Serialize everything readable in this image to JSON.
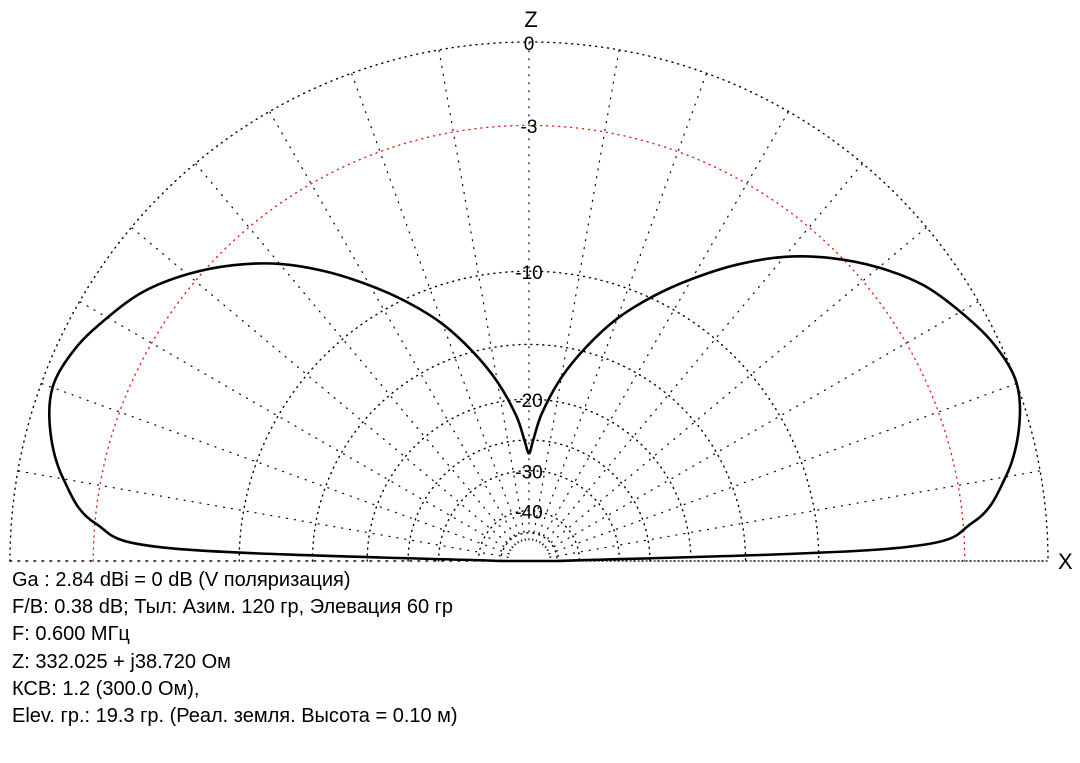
{
  "chart_data": {
    "type": "polar",
    "subtype": "elevation-pattern",
    "axis_labels": {
      "vertical": "Z",
      "horizontal": "X"
    },
    "ring_labels": [
      "0",
      "-3",
      "-10",
      "-20",
      "-30",
      "-40"
    ],
    "ring_values_db": [
      0,
      -3,
      -10,
      -20,
      -30,
      -40
    ],
    "highlight_ring_db": -3,
    "radial_spokes_step_deg": 10,
    "grid": "dotted",
    "colors": {
      "grid": "#000000",
      "highlight_ring": "#e8201a",
      "pattern": "#000000"
    },
    "pattern_db": {
      "elevation_deg": [
        0,
        2,
        5,
        10,
        15,
        20,
        25,
        30,
        35,
        40,
        45,
        50,
        55,
        60,
        65,
        70,
        75,
        80,
        85,
        88,
        90
      ],
      "right_db": [
        -50,
        -6.0,
        -2.6,
        -1.2,
        -0.4,
        0.0,
        -0.2,
        -0.7,
        -1.3,
        -2.2,
        -3.3,
        -4.6,
        -6.2,
        -8.0,
        -9.9,
        -12.0,
        -14.6,
        -17.6,
        -21.5,
        -25.0,
        -27.0
      ],
      "left_db": [
        -50,
        -6.5,
        -3.0,
        -1.6,
        -0.8,
        -0.4,
        -0.6,
        -1.1,
        -1.7,
        -2.6,
        -3.7,
        -5.0,
        -6.6,
        -8.4,
        -10.3,
        -12.4,
        -15.0,
        -18.0,
        -21.8,
        -25.2,
        -27.0
      ]
    }
  },
  "info": {
    "line1": "Ga : 2.84 dBi = 0 dB  (V поляризация)",
    "line2": "F/B: 0.38 dB; Тыл: Азим. 120 гр, Элевация 60 гр",
    "line3": "F: 0.600 МГц",
    "line4": "Z: 332.025 + j38.720 Ом",
    "line5": "КСВ: 1.2 (300.0 Ом),",
    "line6": "Elev. гр.: 19.3 гр. (Реал. земля. Высота = 0.10 м)"
  }
}
